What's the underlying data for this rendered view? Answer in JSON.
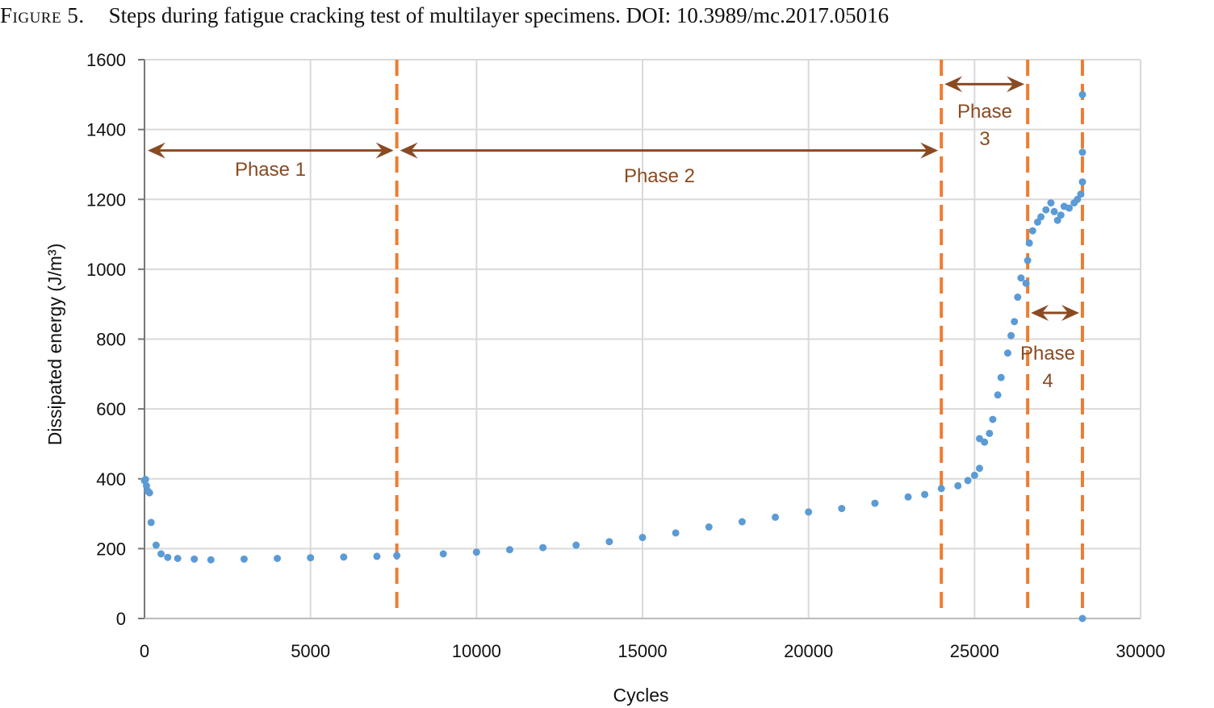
{
  "caption": {
    "label": "Figure 5.",
    "text": "Steps during fatigue cracking test of multilayer specimens. DOI: 10.3989/mc.2017.05016"
  },
  "colors": {
    "points": "#5b9bd5",
    "boundary": "#ed7d31",
    "arrow": "#8a4a22",
    "grid": "#d9d9d9"
  },
  "chart_data": {
    "type": "scatter",
    "xlabel": "Cycles",
    "ylabel": "Dissipated energy (J/m³)",
    "xlim": [
      0,
      30000
    ],
    "ylim": [
      0,
      1600
    ],
    "xticks": [
      0,
      5000,
      10000,
      15000,
      20000,
      25000,
      30000
    ],
    "yticks": [
      0,
      200,
      400,
      600,
      800,
      1000,
      1200,
      1400,
      1600
    ],
    "grid": true,
    "phase_boundaries": [
      7600,
      24000,
      26600,
      28250
    ],
    "phases": [
      {
        "label": "Phase 1",
        "from": 0,
        "to": 7600,
        "y": 1340
      },
      {
        "label": "Phase 2",
        "from": 7600,
        "to": 24000,
        "y": 1340
      },
      {
        "label": "Phase 3",
        "from": 24000,
        "to": 26600,
        "y": 1530
      },
      {
        "label": "Phase 4",
        "from": 26600,
        "to": 28250,
        "y": 875
      }
    ],
    "series": [
      {
        "points": [
          [
            0,
            395
          ],
          [
            30,
            398
          ],
          [
            60,
            380
          ],
          [
            100,
            365
          ],
          [
            150,
            360
          ],
          [
            200,
            275
          ],
          [
            350,
            210
          ],
          [
            500,
            185
          ],
          [
            700,
            175
          ],
          [
            1000,
            172
          ],
          [
            1500,
            170
          ],
          [
            2000,
            168
          ],
          [
            3000,
            170
          ],
          [
            4000,
            172
          ],
          [
            5000,
            174
          ],
          [
            6000,
            176
          ],
          [
            7000,
            178
          ],
          [
            7600,
            180
          ],
          [
            9000,
            185
          ],
          [
            10000,
            190
          ],
          [
            11000,
            197
          ],
          [
            12000,
            203
          ],
          [
            13000,
            210
          ],
          [
            14000,
            220
          ],
          [
            15000,
            232
          ],
          [
            16000,
            245
          ],
          [
            17000,
            262
          ],
          [
            18000,
            277
          ],
          [
            19000,
            290
          ],
          [
            20000,
            305
          ],
          [
            21000,
            315
          ],
          [
            22000,
            330
          ],
          [
            23000,
            348
          ],
          [
            23500,
            355
          ],
          [
            24000,
            372
          ],
          [
            24500,
            380
          ],
          [
            24800,
            395
          ],
          [
            25000,
            410
          ],
          [
            25150,
            430
          ],
          [
            25150,
            515
          ],
          [
            25300,
            505
          ],
          [
            25450,
            530
          ],
          [
            25550,
            570
          ],
          [
            25700,
            640
          ],
          [
            25800,
            690
          ],
          [
            26000,
            760
          ],
          [
            26100,
            810
          ],
          [
            26200,
            850
          ],
          [
            26300,
            920
          ],
          [
            26400,
            975
          ],
          [
            26550,
            960
          ],
          [
            26600,
            1025
          ],
          [
            26650,
            1075
          ],
          [
            26750,
            1110
          ],
          [
            26900,
            1135
          ],
          [
            27000,
            1150
          ],
          [
            27150,
            1170
          ],
          [
            27300,
            1190
          ],
          [
            27400,
            1165
          ],
          [
            27500,
            1140
          ],
          [
            27600,
            1155
          ],
          [
            27700,
            1180
          ],
          [
            27850,
            1175
          ],
          [
            28000,
            1190
          ],
          [
            28100,
            1200
          ],
          [
            28200,
            1215
          ],
          [
            28250,
            1250
          ],
          [
            28250,
            1335
          ],
          [
            28250,
            1500
          ],
          [
            28250,
            0
          ]
        ]
      }
    ]
  }
}
